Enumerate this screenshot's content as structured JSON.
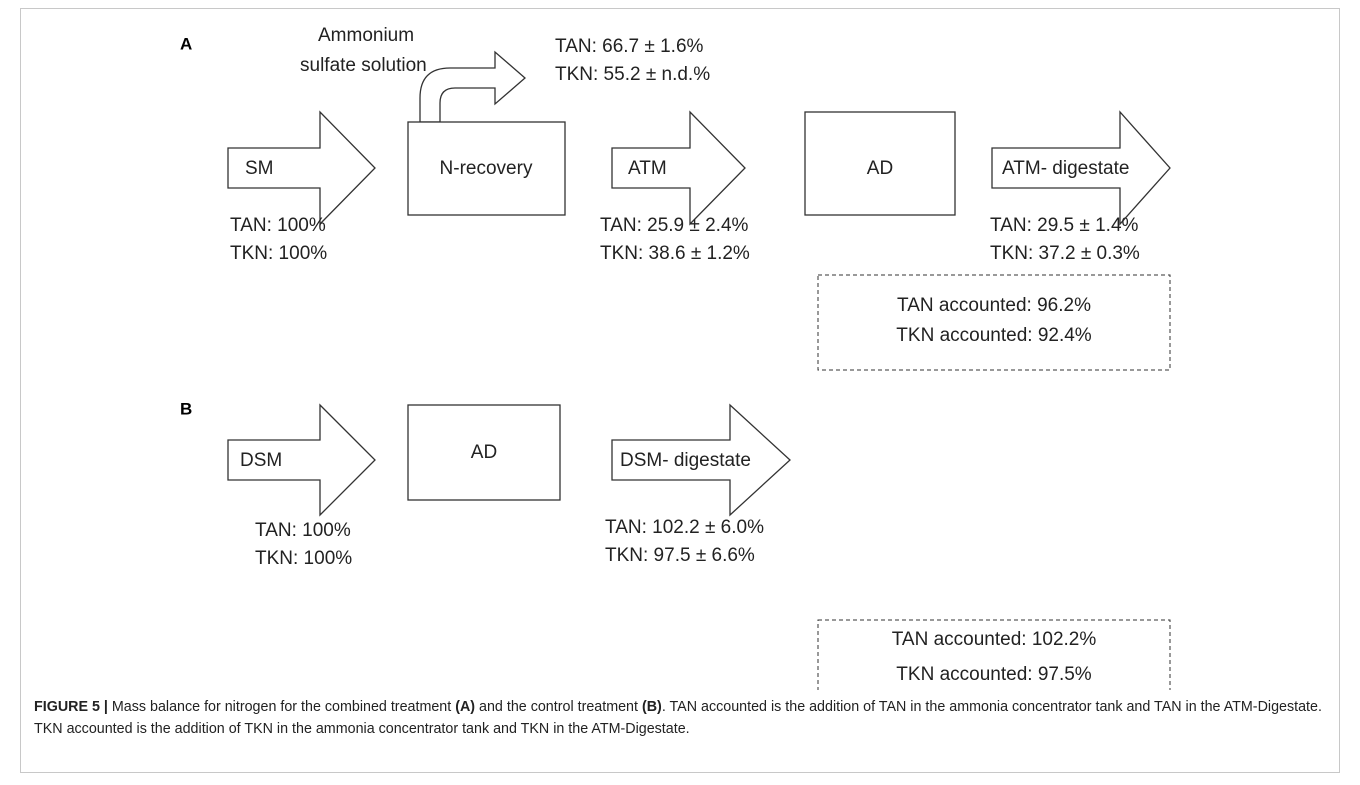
{
  "panel_a": {
    "label": "A",
    "side_output": {
      "lines": [
        "Ammonium",
        "sulfate solution"
      ],
      "values": [
        "TAN: 66.7 ± 1.6%",
        "TKN: 55.2 ± n.d.%"
      ]
    },
    "flows": [
      {
        "label": "SM",
        "values": [
          "TAN: 100%",
          "TKN: 100%"
        ]
      },
      {
        "label": "ATM",
        "values": [
          "TAN: 25.9 ± 2.4%",
          "TKN: 38.6 ± 1.2%"
        ]
      },
      {
        "label": "ATM- digestate",
        "values": [
          "TAN: 29.5 ± 1.4%",
          "TKN: 37.2 ± 0.3%"
        ]
      }
    ],
    "boxes": [
      "N-recovery",
      "AD"
    ],
    "accounted": [
      "TAN accounted: 96.2%",
      "TKN accounted: 92.4%"
    ]
  },
  "panel_b": {
    "label": "B",
    "flows": [
      {
        "label": "DSM",
        "values": [
          "TAN: 100%",
          "TKN: 100%"
        ]
      },
      {
        "label": "DSM- digestate",
        "values": [
          "TAN: 102.2 ± 6.0%",
          "TKN: 97.5 ± 6.6%"
        ]
      }
    ],
    "boxes": [
      "AD"
    ],
    "accounted": [
      "TAN accounted: 102.2%",
      "TKN accounted: 97.5%"
    ]
  },
  "caption": {
    "segments": [
      {
        "text": "FIGURE 5 |",
        "bold": true
      },
      {
        "text": " Mass balance for nitrogen for the combined treatment ",
        "bold": false
      },
      {
        "text": "(A)",
        "bold": true
      },
      {
        "text": " and the control treatment ",
        "bold": false
      },
      {
        "text": "(B)",
        "bold": true
      },
      {
        "text": ". TAN accounted is the addition of TAN in the ammonia concentrator tank and TAN in the ATM-Digestate. TKN accounted is the addition of TKN in the ammonia concentrator tank and TKN in the ATM-Digestate.",
        "bold": false
      }
    ]
  }
}
